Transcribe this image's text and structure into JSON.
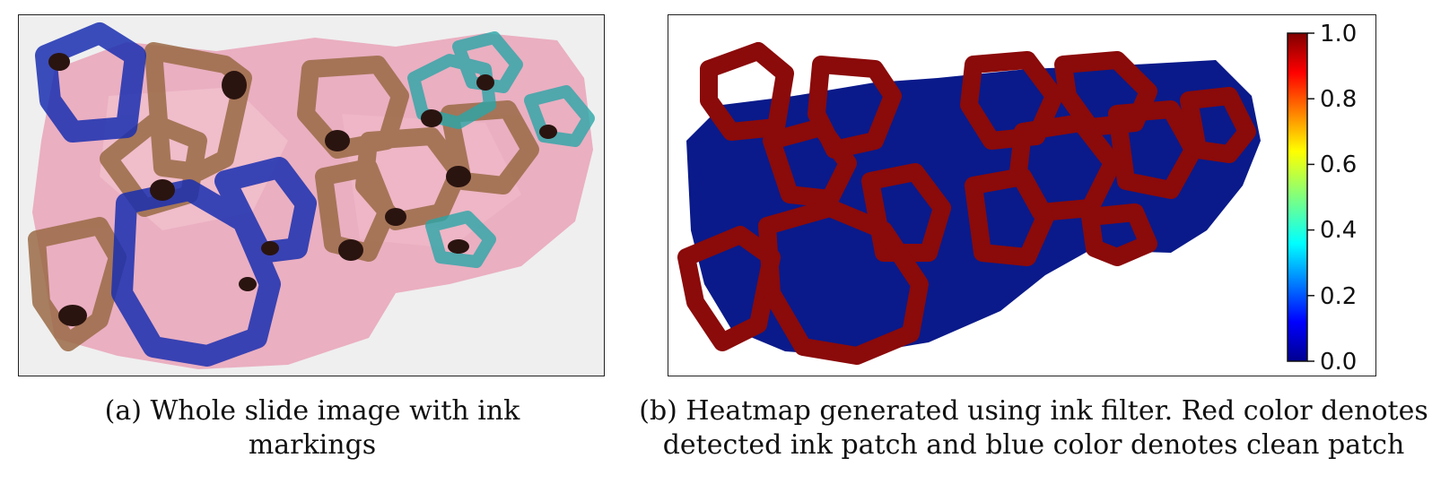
{
  "panel_a": {
    "caption": "(a) Whole slide image with ink markings",
    "colors": {
      "tissue": "#e8a6bc",
      "brown_ink": "#9a6a45",
      "blue_ink": "#1a2fb0",
      "teal_ink": "#2aa6a8",
      "dark_ink": "#2a1410"
    }
  },
  "panel_b": {
    "caption": "(b) Heatmap generated using ink filter. Red color denotes detected ink patch and blue color denotes clean patch",
    "colors": {
      "ink": "#8b0a0a",
      "clean": "#0a1a8a"
    }
  },
  "chart_data": {
    "type": "heatmap",
    "title": "",
    "colorbar": {
      "ticks": [
        "1.0",
        "0.8",
        "0.6",
        "0.4",
        "0.2",
        "0.0"
      ],
      "range": [
        0.0,
        1.0
      ],
      "colormap": "jet"
    },
    "legend": {
      "red": "detected ink patch",
      "blue": "clean patch"
    }
  }
}
